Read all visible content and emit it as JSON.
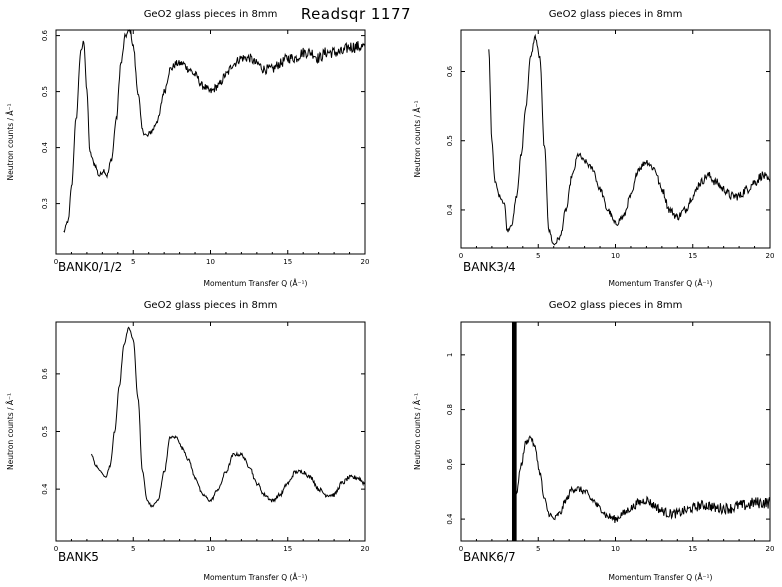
{
  "header": {
    "title": "Readsqr 1177"
  },
  "chart_data": [
    {
      "type": "line",
      "title": "GeO2 glass pieces in 8mm",
      "bank": "BANK0/1/2",
      "xlabel": "Momentum Transfer Q (Å⁻¹)",
      "ylabel": "Neutron counts / Å⁻¹",
      "xlim": [
        0,
        20
      ],
      "ylim": [
        0.21,
        0.61
      ],
      "xticks": [
        "0",
        "5",
        "10",
        "15",
        "20"
      ],
      "xtick_values": [
        0,
        5,
        10,
        15,
        20
      ],
      "yticks": [
        "0.3",
        "0.4",
        "0.5",
        "0.6"
      ],
      "ytick_values": [
        0.3,
        0.4,
        0.5,
        0.6
      ],
      "series": [
        {
          "x": [
            0.5,
            0.8,
            1.0,
            1.3,
            1.6,
            1.8,
            2.0,
            2.2,
            2.5,
            2.8,
            3.1,
            3.3,
            3.6,
            3.9,
            4.2,
            4.5,
            4.8,
            5.0,
            5.3,
            5.6,
            5.9,
            6.2,
            6.6,
            7.0,
            7.4,
            7.8,
            8.2,
            8.6,
            9.0,
            9.5,
            10.0,
            10.5,
            11.0,
            11.5,
            12.0,
            12.5,
            13.0,
            13.5,
            14.0,
            14.5,
            15.0,
            15.5,
            16.0,
            16.5,
            17.0,
            17.5,
            18.0,
            18.5,
            19.0,
            19.5,
            20.0
          ],
          "y": [
            0.25,
            0.27,
            0.33,
            0.45,
            0.57,
            0.59,
            0.5,
            0.39,
            0.37,
            0.35,
            0.36,
            0.35,
            0.38,
            0.45,
            0.55,
            0.6,
            0.61,
            0.58,
            0.5,
            0.43,
            0.42,
            0.43,
            0.45,
            0.5,
            0.54,
            0.55,
            0.55,
            0.54,
            0.53,
            0.51,
            0.5,
            0.51,
            0.53,
            0.55,
            0.56,
            0.56,
            0.55,
            0.54,
            0.54,
            0.55,
            0.56,
            0.56,
            0.57,
            0.57,
            0.56,
            0.57,
            0.57,
            0.57,
            0.58,
            0.58,
            0.58
          ],
          "noise": 0.008
        }
      ]
    },
    {
      "type": "line",
      "title": "GeO2 glass pieces in 8mm",
      "bank": "BANK3/4",
      "xlabel": "Momentum Transfer Q (Å⁻¹)",
      "ylabel": "Neutron counts / Å⁻¹",
      "xlim": [
        0,
        20
      ],
      "ylim": [
        0.345,
        0.66
      ],
      "xticks": [
        "0",
        "5",
        "10",
        "15",
        "20"
      ],
      "xtick_values": [
        0,
        5,
        10,
        15,
        20
      ],
      "yticks": [
        "0.4",
        "0.5",
        "0.6"
      ],
      "yticks_note": "",
      "ytick_values": [
        0.4,
        0.5,
        0.6
      ],
      "series": [
        {
          "x": [
            1.8,
            2.0,
            2.2,
            2.5,
            2.8,
            3.0,
            3.3,
            3.6,
            3.9,
            4.2,
            4.5,
            4.8,
            5.1,
            5.4,
            5.7,
            6.0,
            6.4,
            6.8,
            7.2,
            7.6,
            8.0,
            8.5,
            9.0,
            9.5,
            10.0,
            10.5,
            11.0,
            11.5,
            12.0,
            12.5,
            13.0,
            13.5,
            14.0,
            14.5,
            15.0,
            15.5,
            16.0,
            16.5,
            17.0,
            17.5,
            18.0,
            18.5,
            19.0,
            19.5,
            20.0
          ],
          "y": [
            0.63,
            0.5,
            0.44,
            0.42,
            0.41,
            0.37,
            0.38,
            0.42,
            0.48,
            0.55,
            0.62,
            0.65,
            0.62,
            0.49,
            0.37,
            0.35,
            0.36,
            0.4,
            0.45,
            0.48,
            0.47,
            0.46,
            0.43,
            0.4,
            0.38,
            0.39,
            0.42,
            0.46,
            0.47,
            0.46,
            0.43,
            0.4,
            0.39,
            0.4,
            0.42,
            0.44,
            0.45,
            0.44,
            0.43,
            0.42,
            0.42,
            0.43,
            0.44,
            0.45,
            0.44
          ],
          "noise": 0.005
        }
      ]
    },
    {
      "type": "line",
      "title": "GeO2 glass pieces in 8mm",
      "bank": "BANK5",
      "xlabel": "Momentum Transfer Q (Å⁻¹)",
      "ylabel": "Neutron counts / Å⁻¹",
      "xlim": [
        0,
        20
      ],
      "ylim": [
        0.31,
        0.69
      ],
      "xticks": [
        "0",
        "5",
        "10",
        "15",
        "20"
      ],
      "xtick_values": [
        0,
        5,
        10,
        15,
        20
      ],
      "yticks": [
        "0.4",
        "0.5",
        "0.6"
      ],
      "ytick_values": [
        0.4,
        0.5,
        0.6
      ],
      "series": [
        {
          "x": [
            2.3,
            2.6,
            2.9,
            3.2,
            3.5,
            3.8,
            4.1,
            4.4,
            4.7,
            5.0,
            5.3,
            5.6,
            5.9,
            6.2,
            6.6,
            7.0,
            7.4,
            7.8,
            8.2,
            8.6,
            9.0,
            9.5,
            10.0,
            10.5,
            11.0,
            11.5,
            12.0,
            12.5,
            13.0,
            13.5,
            14.0,
            14.5,
            15.0,
            15.5,
            16.0,
            16.5,
            17.0,
            17.5,
            18.0,
            18.5,
            19.0,
            19.5,
            20.0
          ],
          "y": [
            0.46,
            0.44,
            0.43,
            0.42,
            0.44,
            0.5,
            0.58,
            0.65,
            0.68,
            0.66,
            0.56,
            0.43,
            0.38,
            0.37,
            0.38,
            0.43,
            0.49,
            0.49,
            0.47,
            0.45,
            0.42,
            0.39,
            0.38,
            0.4,
            0.43,
            0.46,
            0.46,
            0.44,
            0.41,
            0.39,
            0.38,
            0.39,
            0.41,
            0.43,
            0.43,
            0.42,
            0.4,
            0.39,
            0.39,
            0.41,
            0.42,
            0.42,
            0.41
          ],
          "noise": 0.003
        }
      ]
    },
    {
      "type": "line",
      "title": "GeO2 glass pieces in 8mm",
      "bank": "BANK6/7",
      "xlabel": "Momentum Transfer Q (Å⁻¹)",
      "ylabel": "Neutron counts / Å⁻¹",
      "xlim": [
        0,
        20
      ],
      "ylim": [
        0.32,
        1.12
      ],
      "xticks": [
        "0",
        "5",
        "10",
        "15",
        "20"
      ],
      "xtick_values": [
        0,
        5,
        10,
        15,
        20
      ],
      "yticks": [
        "0.4",
        "0.6",
        "0.8",
        "1"
      ],
      "ytick_values": [
        0.4,
        0.6,
        0.8,
        1.0
      ],
      "series": [
        {
          "x": [
            3.3,
            3.6,
            3.9,
            4.2,
            4.5,
            4.8,
            5.1,
            5.4,
            5.7,
            6.0,
            6.4,
            6.8,
            7.2,
            7.6,
            8.0,
            8.5,
            9.0,
            9.5,
            10.0,
            10.5,
            11.0,
            11.5,
            12.0,
            12.5,
            13.0,
            13.5,
            14.0,
            14.5,
            15.0,
            15.5,
            16.0,
            16.5,
            17.0,
            17.5,
            18.0,
            18.5,
            19.0,
            19.5,
            20.0
          ],
          "y": [
            0.44,
            0.5,
            0.6,
            0.68,
            0.7,
            0.66,
            0.57,
            0.47,
            0.42,
            0.4,
            0.42,
            0.47,
            0.51,
            0.51,
            0.5,
            0.47,
            0.44,
            0.41,
            0.4,
            0.42,
            0.44,
            0.46,
            0.47,
            0.45,
            0.43,
            0.42,
            0.42,
            0.43,
            0.44,
            0.45,
            0.45,
            0.44,
            0.44,
            0.44,
            0.45,
            0.45,
            0.46,
            0.46,
            0.46
          ],
          "noise": 0.016,
          "spike_q": [
            3.3,
            3.6
          ]
        }
      ]
    }
  ]
}
